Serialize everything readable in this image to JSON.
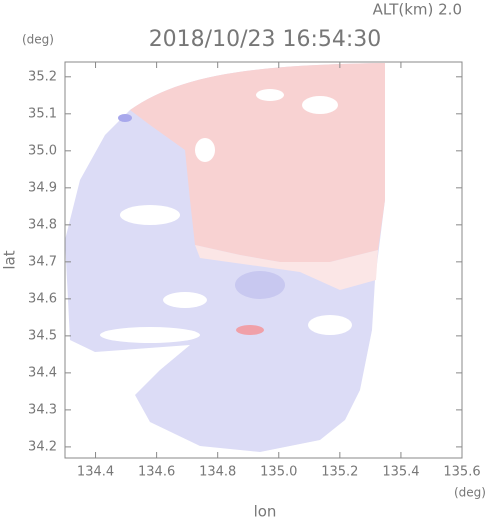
{
  "chart_data": {
    "type": "heatmap",
    "title": "2018/10/23 16:54:30",
    "subtitle": "ALT(km) 2.0",
    "y_unit": "(deg)",
    "x_unit": "(deg)",
    "xlabel": "lon",
    "ylabel": "lat",
    "xlim": [
      134.3,
      135.6
    ],
    "ylim": [
      34.17,
      35.24
    ],
    "xticks": [
      {
        "value": 134.4,
        "label": "134.4"
      },
      {
        "value": 134.6,
        "label": "134.6"
      },
      {
        "value": 134.8,
        "label": "134.8"
      },
      {
        "value": 135.0,
        "label": "135.0"
      },
      {
        "value": 135.2,
        "label": "135.2"
      },
      {
        "value": 135.4,
        "label": "135.4"
      },
      {
        "value": 135.6,
        "label": "135.6"
      }
    ],
    "yticks": [
      {
        "value": 34.2,
        "label": "34.2"
      },
      {
        "value": 34.3,
        "label": "34.3"
      },
      {
        "value": 34.4,
        "label": "34.4"
      },
      {
        "value": 34.5,
        "label": "34.5"
      },
      {
        "value": 34.6,
        "label": "34.6"
      },
      {
        "value": 34.7,
        "label": "34.7"
      },
      {
        "value": 34.8,
        "label": "34.8"
      },
      {
        "value": 34.9,
        "label": "34.9"
      },
      {
        "value": 35.0,
        "label": "35.0"
      },
      {
        "value": 35.1,
        "label": "35.1"
      },
      {
        "value": 35.2,
        "label": "35.2"
      }
    ]
  }
}
